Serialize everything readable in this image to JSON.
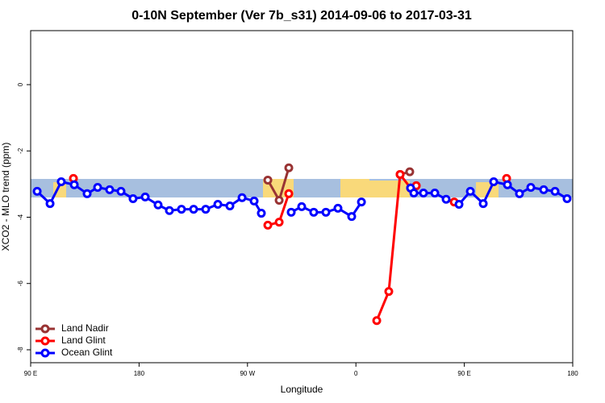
{
  "chart_data": {
    "type": "line",
    "title": "0-10N September (Ver 7b_s31)   2014-09-06 to 2017-03-31",
    "x_label": "Longitude",
    "y_label": "XCO2 - MLO trend (ppm)",
    "xlim": [
      90,
      540
    ],
    "xticks": [
      {
        "value": 90,
        "label": "90 E"
      },
      {
        "value": 180,
        "label": "180"
      },
      {
        "value": 270,
        "label": "90 W"
      },
      {
        "value": 360,
        "label": "0"
      },
      {
        "value": 450,
        "label": "90 E"
      },
      {
        "value": 540,
        "label": "180"
      }
    ],
    "ylim": [
      -8.39,
      1.63
    ],
    "yticks": [
      0,
      -2,
      -4,
      -6,
      -8
    ],
    "legend": "bottom-left",
    "series": [
      {
        "name": "Land Nadir",
        "color": "#993333",
        "x": [
          286.9,
          296.3,
          304.3,
          null,
          396.7,
          404.7
        ],
        "values": [
          -2.88,
          -3.49,
          -2.51,
          null,
          -2.71,
          -2.63
        ]
      },
      {
        "name": "Land Glint",
        "color": "#ff0000",
        "x": [
          125.5,
          null,
          286.9,
          296.3,
          304.3,
          null,
          377.3,
          387.3,
          396.7,
          405.4,
          410.1,
          null,
          441.6,
          null,
          485.1
        ],
        "values": [
          -2.83,
          null,
          -4.24,
          -4.15,
          -3.29,
          null,
          -7.12,
          -6.24,
          -2.71,
          -3.12,
          -3.05,
          null,
          -3.54,
          null,
          -2.83
        ]
      },
      {
        "name": "Ocean Glint",
        "color": "#0000ff",
        "x": [
          95.4,
          106.1,
          115.4,
          126.2,
          136.9,
          145.6,
          155.6,
          165,
          175,
          185.1,
          195.8,
          205.2,
          215.2,
          225.3,
          235.3,
          245.4,
          255.4,
          265.5,
          275.5,
          281.5,
          null,
          306.3,
          315,
          325,
          335.1,
          345.1,
          356.5,
          364.6,
          null,
          405.4,
          408.1,
          416.1,
          425.5,
          434.9,
          445.6,
          455,
          465.7,
          474.4,
          485.8,
          495.8,
          505.2,
          515.9,
          525.3,
          535.3
        ],
        "values": [
          -3.22,
          -3.59,
          -2.93,
          -3.02,
          -3.29,
          -3.1,
          -3.17,
          -3.22,
          -3.44,
          -3.39,
          -3.63,
          -3.8,
          -3.76,
          -3.76,
          -3.76,
          -3.61,
          -3.66,
          -3.41,
          -3.51,
          -3.88,
          null,
          -3.85,
          -3.68,
          -3.85,
          -3.85,
          -3.73,
          -3.98,
          -3.54,
          null,
          -3.12,
          -3.27,
          -3.27,
          -3.27,
          -3.46,
          -3.61,
          -3.22,
          -3.59,
          -2.93,
          -3.02,
          -3.29,
          -3.1,
          -3.17,
          -3.22,
          -3.44
        ]
      }
    ]
  }
}
